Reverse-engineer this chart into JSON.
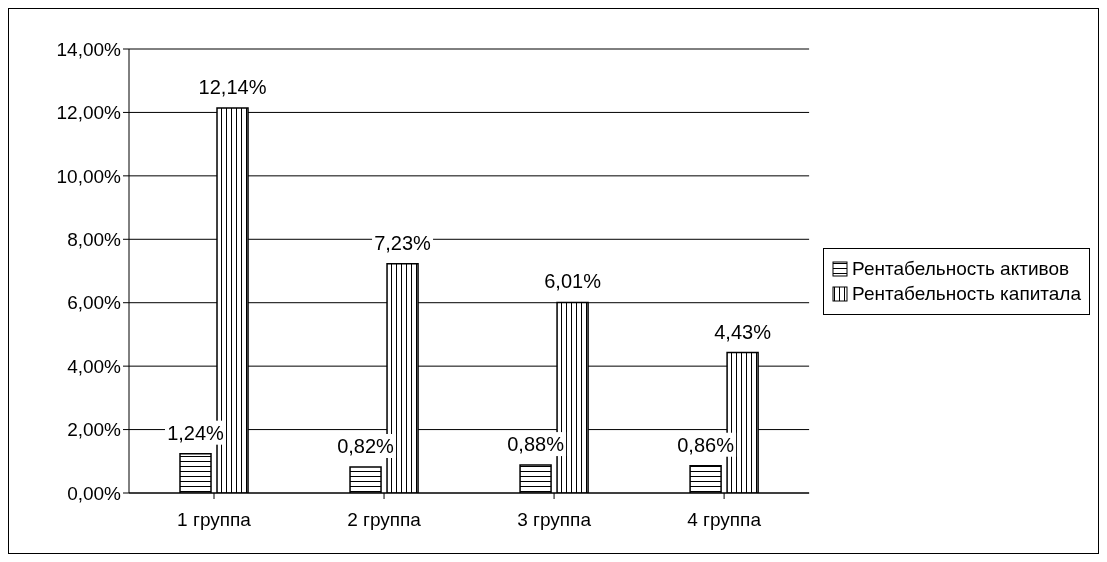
{
  "chart_data": {
    "type": "bar",
    "categories": [
      "1 группа",
      "2 группа",
      "3 группа",
      "4 группа"
    ],
    "series": [
      {
        "name": "Рентабельность активов",
        "color": "#000000",
        "values": [
          1.24,
          0.82,
          0.88,
          0.86
        ],
        "value_labels": [
          "1,24%",
          "0,82%",
          "0,88%",
          "0,86%"
        ]
      },
      {
        "name": "Рентабельность капитала",
        "color": "#000000",
        "values": [
          12.14,
          7.23,
          6.01,
          4.43
        ],
        "value_labels": [
          "12,14%",
          "7,23%",
          "6,01%",
          "4,43%"
        ]
      }
    ],
    "ylim": [
      0,
      14
    ],
    "yticks": [
      {
        "value": 0,
        "label": "0,00%"
      },
      {
        "value": 2,
        "label": "2,00%"
      },
      {
        "value": 4,
        "label": "4,00%"
      },
      {
        "value": 6,
        "label": "6,00%"
      },
      {
        "value": 8,
        "label": "8,00%"
      },
      {
        "value": 10,
        "label": "10,00%"
      },
      {
        "value": 12,
        "label": "12,00%"
      },
      {
        "value": 14,
        "label": "14,00%"
      }
    ],
    "grid": "y",
    "legend": "right"
  }
}
